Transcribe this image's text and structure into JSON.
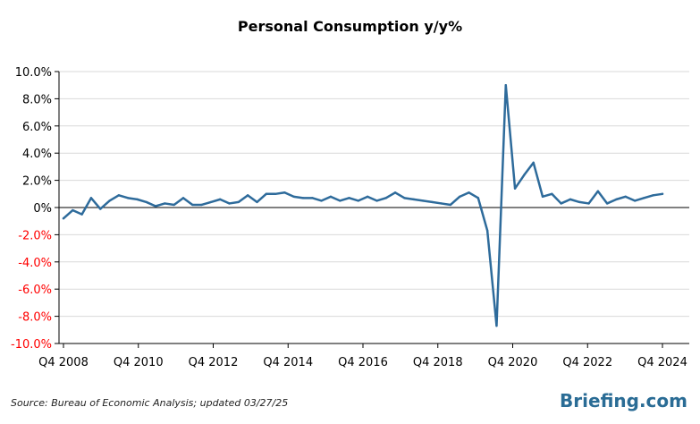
{
  "colors": {
    "line": "#2e6b9b",
    "grid": "#d9d9d9",
    "axis": "#000000",
    "negative_tick": "#ff0000",
    "positive_tick": "#000000",
    "brand": "#2a6c95"
  },
  "source_note": "Source: Bureau of Economic Analysis; updated 03/27/25",
  "brand": "Briefing.com",
  "chart_data": {
    "type": "line",
    "title": "Personal Consumption y/y%",
    "xlabel": "",
    "ylabel": "",
    "ylim": [
      -10,
      10
    ],
    "grid": true,
    "legend": "none",
    "x_tick_labels": [
      "Q4 2008",
      "Q4 2010",
      "Q4 2012",
      "Q4 2014",
      "Q4 2016",
      "Q4 2018",
      "Q4 2020",
      "Q4 2022",
      "Q4 2024"
    ],
    "y_tick_labels": [
      "10.0%",
      "8.0%",
      "6.0%",
      "4.0%",
      "2.0%",
      "0%",
      "-2.0%",
      "-4.0%",
      "-6.0%",
      "-8.0%",
      "-10.0%"
    ],
    "y_tick_values": [
      10,
      8,
      6,
      4,
      2,
      0,
      -2,
      -4,
      -6,
      -8,
      -10
    ],
    "series": [
      {
        "values": [
          -0.8,
          -0.2,
          -0.5,
          0.7,
          -0.1,
          0.5,
          0.9,
          0.7,
          0.6,
          0.4,
          0.1,
          0.3,
          0.2,
          0.7,
          0.2,
          0.2,
          0.4,
          0.6,
          0.3,
          0.4,
          0.9,
          0.4,
          1.0,
          1.0,
          1.1,
          0.8,
          0.7,
          0.7,
          0.5,
          0.8,
          0.5,
          0.7,
          0.5,
          0.8,
          0.5,
          0.7,
          1.1,
          0.7,
          0.6,
          0.5,
          0.4,
          0.3,
          0.2,
          0.8,
          1.1,
          0.7,
          -1.7,
          -8.7,
          9.0,
          1.4,
          2.4,
          3.3,
          0.8,
          1.0,
          0.3,
          0.6,
          0.4,
          0.3,
          1.2,
          0.3,
          0.6,
          0.8,
          0.5,
          0.7,
          0.9,
          1.0
        ]
      }
    ]
  }
}
